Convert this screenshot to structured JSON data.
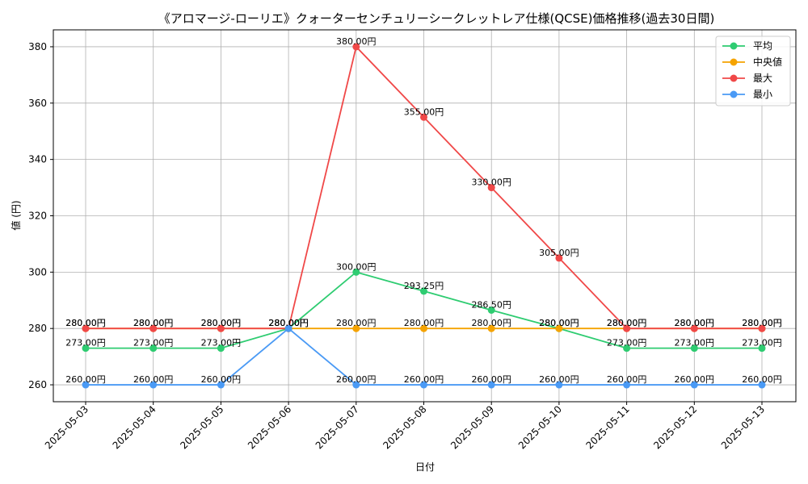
{
  "chart_data": {
    "type": "line",
    "title": "《アロマージ-ローリエ》クォーターセンチュリーシークレットレア仕様(QCSE)価格推移(過去30日間)",
    "xlabel": "日付",
    "ylabel": "値 (円)",
    "ylim": [
      254,
      386
    ],
    "yticks": [
      260,
      280,
      300,
      320,
      340,
      360,
      380
    ],
    "grid": true,
    "legend_position": "top-right",
    "categories": [
      "2025-05-03",
      "2025-05-04",
      "2025-05-05",
      "2025-05-06",
      "2025-05-07",
      "2025-05-08",
      "2025-05-09",
      "2025-05-10",
      "2025-05-11",
      "2025-05-12",
      "2025-05-13"
    ],
    "series": [
      {
        "name": "平均",
        "color": "#2ecc71",
        "values": [
          273,
          273,
          273,
          280,
          300,
          293.25,
          286.5,
          280,
          273,
          273,
          273
        ],
        "labels": [
          "273.00円",
          "273.00円",
          "273.00円",
          "280.00円",
          "300.00円",
          "293.25円",
          "286.50円",
          "280.00円",
          "273.00円",
          "273.00円",
          "273.00円"
        ]
      },
      {
        "name": "中央値",
        "color": "#f5a300",
        "values": [
          280,
          280,
          280,
          280,
          280,
          280,
          280,
          280,
          280,
          280,
          280
        ],
        "labels": [
          "280.00円",
          "280.00円",
          "280.00円",
          "280.00円",
          "280.00円",
          "280.00円",
          "280.00円",
          "280.00円",
          "280.00円",
          "280.00円",
          "280.00円"
        ]
      },
      {
        "name": "最大",
        "color": "#f04848",
        "values": [
          280,
          280,
          280,
          280,
          380,
          355,
          330,
          305,
          280,
          280,
          280
        ],
        "labels": [
          "280.00円",
          "280.00円",
          "280.00円",
          "280.00円",
          "380.00円",
          "355.00円",
          "330.00円",
          "305.00円",
          "280.00円",
          "280.00円",
          "280.00円"
        ]
      },
      {
        "name": "最小",
        "color": "#4a9af5",
        "values": [
          260,
          260,
          260,
          280,
          260,
          260,
          260,
          260,
          260,
          260,
          260
        ],
        "labels": [
          "260.00円",
          "260.00円",
          "260.00円",
          "280.00円",
          "260.00円",
          "260.00円",
          "260.00円",
          "260.00円",
          "260.00円",
          "260.00円",
          "260.00円"
        ]
      }
    ]
  }
}
